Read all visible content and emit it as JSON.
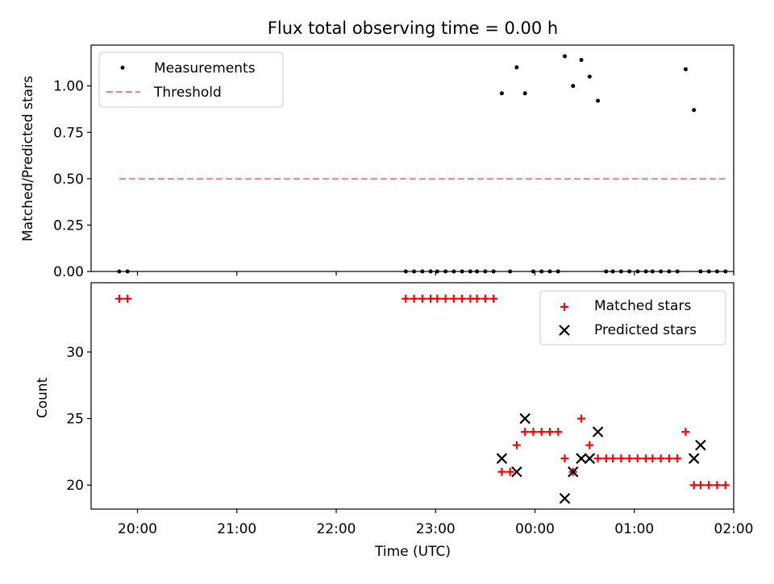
{
  "chart_data": [
    {
      "type": "scatter",
      "title": "Flux total observing time = 0.00 h",
      "xlabel": "",
      "ylabel": "Matched/Predicted stars",
      "xlim": [
        "19:32",
        "02:00"
      ],
      "ylim": [
        0.0,
        1.22
      ],
      "yticks": [
        "0.00",
        "0.25",
        "0.50",
        "0.75",
        "1.00"
      ],
      "ytick_values": [
        0.0,
        0.25,
        0.5,
        0.75,
        1.0
      ],
      "xtick_values": [
        "20:00",
        "21:00",
        "22:00",
        "23:00",
        "00:00",
        "01:00",
        "02:00"
      ],
      "legend": "upper-left",
      "series": [
        {
          "name": "Measurements",
          "kind": "points",
          "color": "#000000",
          "x": [
            "19:49",
            "19:54",
            "22:42",
            "22:47",
            "22:52",
            "22:57",
            "23:01",
            "23:06",
            "23:11",
            "23:16",
            "23:21",
            "23:25",
            "23:30",
            "23:35",
            "23:40",
            "23:45",
            "23:49",
            "23:54",
            "23:59",
            "00:04",
            "00:09",
            "00:14",
            "00:18",
            "00:23",
            "00:28",
            "00:33",
            "00:38",
            "00:43",
            "00:47",
            "00:52",
            "00:57",
            "01:02",
            "01:07",
            "01:11",
            "01:16",
            "01:21",
            "01:26",
            "01:31",
            "01:36",
            "01:40",
            "01:45",
            "01:50",
            "01:55"
          ],
          "y": [
            0,
            0,
            0,
            0,
            0,
            0,
            0,
            0,
            0,
            0,
            0,
            0,
            0,
            0,
            0.96,
            0,
            1.1,
            0.96,
            0,
            0,
            0,
            0,
            1.16,
            1.0,
            1.14,
            1.05,
            0.92,
            0,
            0,
            0,
            0,
            0,
            0,
            0,
            0,
            0,
            0,
            1.09,
            0.87,
            0,
            0,
            0,
            0
          ]
        },
        {
          "name": "Threshold",
          "kind": "line",
          "color": "#ff7f7f",
          "x": [
            "19:49",
            "01:55"
          ],
          "y": [
            0.5,
            0.5
          ]
        }
      ]
    },
    {
      "type": "scatter",
      "title": "",
      "xlabel": "Time (UTC)",
      "ylabel": "Count",
      "xlim": [
        "19:32",
        "02:00"
      ],
      "ylim": [
        18.2,
        35.2
      ],
      "yticks": [
        "20",
        "25",
        "30"
      ],
      "ytick_values": [
        20,
        25,
        30
      ],
      "xticks": [
        "20:00",
        "21:00",
        "22:00",
        "23:00",
        "00:00",
        "01:00",
        "02:00"
      ],
      "xtick_values": [
        "20:00",
        "21:00",
        "22:00",
        "23:00",
        "00:00",
        "01:00",
        "02:00"
      ],
      "legend": "upper-right",
      "series": [
        {
          "name": "Matched stars",
          "marker": "plus",
          "color": "#ff0000",
          "x": [
            "19:49",
            "19:54",
            "22:42",
            "22:47",
            "22:52",
            "22:57",
            "23:01",
            "23:06",
            "23:11",
            "23:16",
            "23:21",
            "23:25",
            "23:30",
            "23:35",
            "23:40",
            "23:45",
            "23:49",
            "23:54",
            "23:59",
            "00:04",
            "00:09",
            "00:14",
            "00:18",
            "00:23",
            "00:28",
            "00:33",
            "00:38",
            "00:43",
            "00:47",
            "00:52",
            "00:57",
            "01:02",
            "01:07",
            "01:11",
            "01:16",
            "01:21",
            "01:26",
            "01:31",
            "01:36",
            "01:40",
            "01:45",
            "01:50",
            "01:55"
          ],
          "y": [
            34,
            34,
            34,
            34,
            34,
            34,
            34,
            34,
            34,
            34,
            34,
            34,
            34,
            34,
            21,
            21,
            23,
            24,
            24,
            24,
            24,
            24,
            22,
            21,
            25,
            23,
            22,
            22,
            22,
            22,
            22,
            22,
            22,
            22,
            22,
            22,
            22,
            24,
            20,
            20,
            20,
            20,
            20
          ]
        },
        {
          "name": "Predicted stars",
          "marker": "x",
          "color": "#000000",
          "x": [
            "23:40",
            "23:49",
            "23:54",
            "00:18",
            "00:23",
            "00:28",
            "00:33",
            "00:38",
            "01:36",
            "01:40"
          ],
          "y": [
            22,
            21,
            25,
            19,
            21,
            22,
            22,
            24,
            22,
            23
          ]
        }
      ]
    }
  ]
}
